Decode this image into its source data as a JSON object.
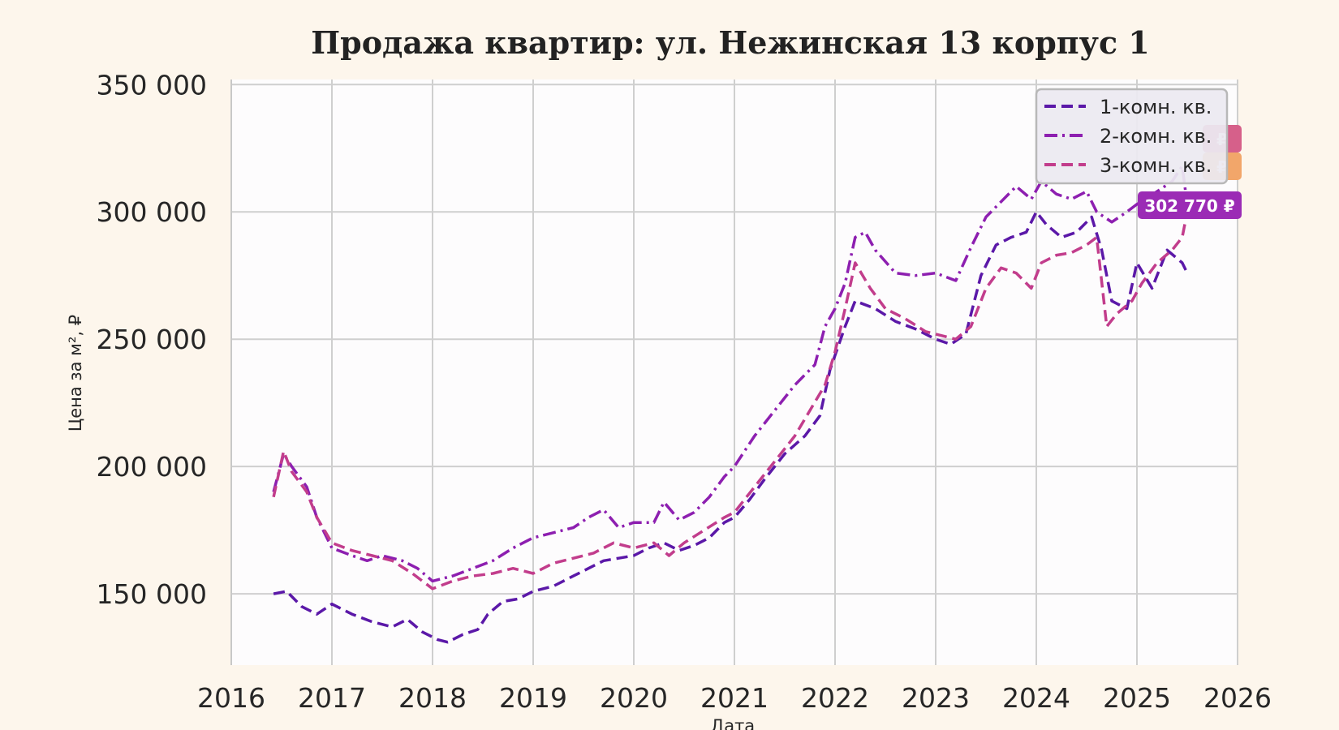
{
  "colors": {
    "background": "#fdf6ec",
    "plot_background": "#fdfcfd",
    "series_1": "#5b18a8",
    "series_2": "#8d1fb0",
    "series_3": "#c23d8c",
    "badge_1": "#9b2bb5",
    "badge_2": "#d6608a",
    "badge_3": "#f2a66a"
  },
  "chart_data": {
    "type": "line",
    "title": "Продажа квартир: ул. Нежинская 13 корпус 1",
    "xlabel": "Дата",
    "ylabel": "Цена за м², ₽",
    "xlim": [
      2016,
      2026
    ],
    "ylim": [
      122000,
      352000
    ],
    "x_ticks": [
      "2016",
      "2017",
      "2018",
      "2019",
      "2020",
      "2021",
      "2022",
      "2023",
      "2024",
      "2025",
      "2026"
    ],
    "y_ticks": [
      "150 000",
      "200 000",
      "250 000",
      "300 000",
      "350 000"
    ],
    "y_tick_values": [
      150000,
      200000,
      250000,
      300000,
      350000
    ],
    "grid": true,
    "legend_position": "top-right",
    "series": [
      {
        "name": "1-комн. кв.",
        "style": "dashed",
        "x": [
          2016.42,
          2016.55,
          2016.7,
          2016.85,
          2017.0,
          2017.2,
          2017.4,
          2017.6,
          2017.75,
          2017.9,
          2018.05,
          2018.15,
          2018.3,
          2018.45,
          2018.55,
          2018.7,
          2018.85,
          2019.0,
          2019.2,
          2019.4,
          2019.55,
          2019.7,
          2019.85,
          2020.0,
          2020.15,
          2020.3,
          2020.45,
          2020.6,
          2020.75,
          2020.9,
          2021.0,
          2021.15,
          2021.3,
          2021.5,
          2021.7,
          2021.85,
          2021.95,
          2022.1,
          2022.2,
          2022.4,
          2022.6,
          2022.8,
          2023.0,
          2023.15,
          2023.3,
          2023.45,
          2023.6,
          2023.75,
          2023.9,
          2024.0,
          2024.1,
          2024.25,
          2024.4,
          2024.55,
          2024.65,
          2024.75,
          2024.9,
          2025.0,
          2025.15,
          2025.3,
          2025.45,
          2025.5
        ],
        "values": [
          150000,
          151000,
          145000,
          142000,
          146000,
          142000,
          139000,
          137000,
          140000,
          135000,
          132000,
          131000,
          134000,
          136000,
          142000,
          147000,
          148000,
          151000,
          153000,
          157000,
          160000,
          163000,
          164000,
          165000,
          168000,
          170000,
          167000,
          169000,
          172000,
          178000,
          180000,
          187000,
          195000,
          205000,
          212000,
          220000,
          238000,
          255000,
          265000,
          262000,
          257000,
          254000,
          250000,
          248000,
          252000,
          275000,
          287000,
          290000,
          292000,
          300000,
          295000,
          290000,
          292000,
          298000,
          285000,
          265000,
          262000,
          280000,
          270000,
          285000,
          280000,
          276000
        ]
      },
      {
        "name": "2-комн. кв.",
        "style": "dashdot",
        "x": [
          2016.42,
          2016.52,
          2016.6,
          2016.75,
          2016.85,
          2017.0,
          2017.2,
          2017.35,
          2017.5,
          2017.7,
          2017.85,
          2018.0,
          2018.2,
          2018.4,
          2018.6,
          2018.8,
          2019.0,
          2019.2,
          2019.4,
          2019.55,
          2019.7,
          2019.85,
          2020.0,
          2020.2,
          2020.3,
          2020.45,
          2020.6,
          2020.75,
          2020.9,
          2021.0,
          2021.2,
          2021.4,
          2021.6,
          2021.8,
          2021.9,
          2022.0,
          2022.1,
          2022.2,
          2022.3,
          2022.4,
          2022.6,
          2022.8,
          2023.0,
          2023.2,
          2023.35,
          2023.5,
          2023.65,
          2023.8,
          2023.95,
          2024.05,
          2024.2,
          2024.35,
          2024.5,
          2024.6,
          2024.75,
          2024.9,
          2025.0,
          2025.2,
          2025.35,
          2025.45,
          2025.5
        ],
        "values": [
          190000,
          205000,
          200000,
          192000,
          180000,
          168000,
          165000,
          163000,
          165000,
          163000,
          160000,
          155000,
          157000,
          160000,
          163000,
          168000,
          172000,
          174000,
          176000,
          180000,
          183000,
          176000,
          178000,
          178000,
          186000,
          179000,
          182000,
          188000,
          196000,
          200000,
          212000,
          222000,
          232000,
          240000,
          255000,
          262000,
          272000,
          290000,
          292000,
          285000,
          276000,
          275000,
          276000,
          273000,
          286000,
          298000,
          304000,
          310000,
          305000,
          312000,
          307000,
          305000,
          308000,
          300000,
          296000,
          300000,
          303000,
          308000,
          312000,
          318000,
          302770
        ]
      },
      {
        "name": "3-комн. кв.",
        "style": "dashed",
        "x": [
          2016.42,
          2016.52,
          2016.6,
          2016.75,
          2016.85,
          2017.0,
          2017.2,
          2017.4,
          2017.6,
          2017.8,
          2018.0,
          2018.2,
          2018.4,
          2018.6,
          2018.8,
          2019.0,
          2019.2,
          2019.4,
          2019.6,
          2019.8,
          2020.0,
          2020.2,
          2020.35,
          2020.5,
          2020.7,
          2020.9,
          2021.0,
          2021.2,
          2021.4,
          2021.6,
          2021.75,
          2021.9,
          2022.0,
          2022.1,
          2022.2,
          2022.35,
          2022.5,
          2022.7,
          2022.9,
          2023.0,
          2023.2,
          2023.35,
          2023.5,
          2023.65,
          2023.8,
          2023.95,
          2024.05,
          2024.2,
          2024.35,
          2024.5,
          2024.6,
          2024.7,
          2024.8,
          2024.95,
          2025.05,
          2025.2,
          2025.35,
          2025.45,
          2025.5
        ],
        "values": [
          188000,
          206000,
          198000,
          190000,
          180000,
          170000,
          167000,
          165000,
          163000,
          158000,
          152000,
          155000,
          157000,
          158000,
          160000,
          158000,
          162000,
          164000,
          166000,
          170000,
          168000,
          170000,
          165000,
          170000,
          175000,
          180000,
          182000,
          192000,
          202000,
          212000,
          222000,
          232000,
          245000,
          262000,
          280000,
          270000,
          262000,
          258000,
          253000,
          252000,
          250000,
          255000,
          270000,
          278000,
          276000,
          270000,
          280000,
          283000,
          284000,
          287000,
          290000,
          255000,
          260000,
          265000,
          272000,
          280000,
          285000,
          290000,
          300000
        ]
      }
    ],
    "badges": [
      {
        "series": "1-комн. кв.",
        "text": "₽"
      },
      {
        "series": "3-комн. кв.",
        "text": "₽"
      },
      {
        "series": "2-комн. кв.",
        "text": "302 770 ₽"
      }
    ]
  }
}
